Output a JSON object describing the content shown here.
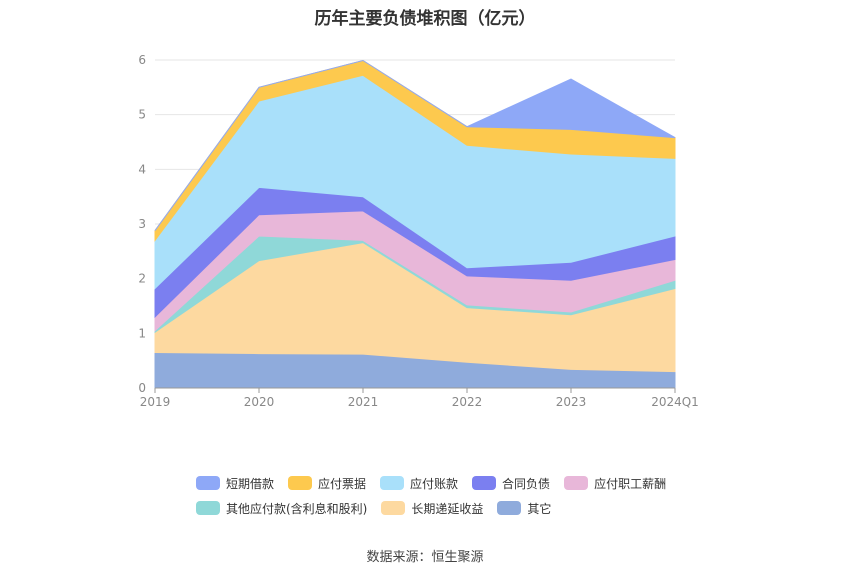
{
  "chart_data": {
    "type": "area",
    "stacked": true,
    "title": "历年主要负债堆积图（亿元）",
    "categories": [
      "2019",
      "2020",
      "2021",
      "2022",
      "2023",
      "2024Q1"
    ],
    "y_ticks": [
      "0",
      "1",
      "2",
      "3",
      "4",
      "5",
      "6"
    ],
    "ylim": [
      0,
      6
    ],
    "grid": true,
    "legend_position": "bottom",
    "series": [
      {
        "name": "其它",
        "color": "#8fabdc",
        "values": [
          0.65,
          0.63,
          0.62,
          0.47,
          0.34,
          0.3
        ]
      },
      {
        "name": "长期递延收益",
        "color": "#fdd9a0",
        "values": [
          0.37,
          1.7,
          2.04,
          1.0,
          1.0,
          1.52
        ]
      },
      {
        "name": "其他应付款(含利息和股利)",
        "color": "#8fd8d8",
        "values": [
          0.03,
          0.45,
          0.04,
          0.05,
          0.05,
          0.15
        ]
      },
      {
        "name": "应付职工薪酬",
        "color": "#e8b7d9",
        "values": [
          0.25,
          0.39,
          0.54,
          0.53,
          0.58,
          0.38
        ]
      },
      {
        "name": "合同负债",
        "color": "#7b7ff0",
        "values": [
          0.52,
          0.5,
          0.26,
          0.15,
          0.33,
          0.43
        ]
      },
      {
        "name": "应付账款",
        "color": "#a9e0fa",
        "values": [
          0.88,
          1.58,
          2.22,
          2.24,
          1.98,
          1.42
        ]
      },
      {
        "name": "应付票据",
        "color": "#fdc94e",
        "values": [
          0.18,
          0.25,
          0.27,
          0.34,
          0.45,
          0.38
        ]
      },
      {
        "name": "短期借款",
        "color": "#8ea8f7",
        "values": [
          0.0,
          0.0,
          0.0,
          0.0,
          0.92,
          0.0
        ]
      }
    ],
    "legend_order": [
      "短期借款",
      "应付票据",
      "应付账款",
      "合同负债",
      "应付职工薪酬",
      "其他应付款(含利息和股利)",
      "长期递延收益",
      "其它"
    ]
  },
  "source_text": "数据来源：恒生聚源"
}
